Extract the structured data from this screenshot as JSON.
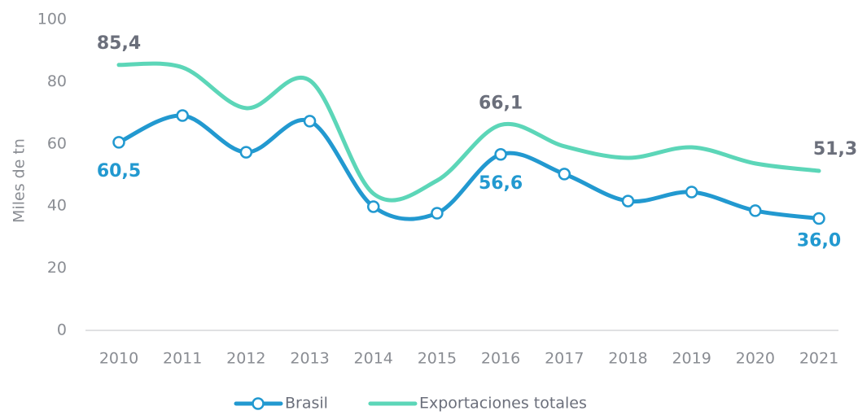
{
  "chart_data": {
    "type": "line",
    "y_label": "Miles de tn",
    "categories": [
      "2010",
      "2011",
      "2012",
      "2013",
      "2014",
      "2015",
      "2016",
      "2017",
      "2018",
      "2019",
      "2020",
      "2021"
    ],
    "series": [
      {
        "name": "Brasil",
        "color": "#2299d0",
        "label_color": "#2299d0",
        "markers": true,
        "values": [
          60.5,
          69.1,
          57.3,
          67.3,
          39.8,
          37.7,
          56.6,
          50.3,
          41.6,
          44.5,
          38.5,
          36.0
        ],
        "value_labels": [
          "60,5",
          null,
          null,
          null,
          null,
          null,
          "56,6",
          null,
          null,
          null,
          null,
          "36,0"
        ]
      },
      {
        "name": "Exportaciones totales",
        "color": "#5cd6b8",
        "label_color": "#6b6f7b",
        "markers": false,
        "values": [
          85.4,
          84.6,
          71.5,
          80.4,
          44.0,
          48.2,
          66.1,
          59.2,
          55.5,
          58.9,
          53.7,
          51.3
        ],
        "value_labels": [
          "85,4",
          null,
          null,
          null,
          null,
          null,
          "66,1",
          null,
          null,
          null,
          null,
          "51,3"
        ]
      }
    ],
    "ylim": [
      0,
      100
    ],
    "yticks": [
      0,
      20,
      40,
      60,
      80,
      100
    ],
    "grid": false,
    "legend": "bottom"
  }
}
